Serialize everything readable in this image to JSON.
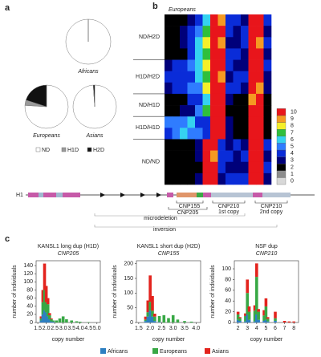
{
  "panel_labels": [
    "a",
    "b",
    "c"
  ],
  "chart_data": [
    {
      "type": "pie",
      "categories": [
        "ND",
        "H1D",
        "H2D"
      ],
      "colors": [
        "#ffffff",
        "#9a9a9a",
        "#111111"
      ],
      "pies": [
        {
          "name": "Africans",
          "values": [
            100,
            0,
            0
          ]
        },
        {
          "name": "Europeans",
          "values": [
            76,
            4,
            20
          ]
        },
        {
          "name": "Asians",
          "values": [
            99,
            0,
            1
          ]
        }
      ]
    },
    {
      "type": "heatmap",
      "title": "Europeans",
      "groups": [
        {
          "label": "ND/H2D",
          "rows": [
            [
              2,
              2,
              2,
              3,
              4,
              6,
              10,
              9,
              4,
              4,
              3,
              10,
              10,
              4
            ],
            [
              2,
              2,
              3,
              4,
              5,
              7,
              10,
              10,
              4,
              3,
              4,
              10,
              10,
              3
            ],
            [
              2,
              2,
              3,
              4,
              6,
              8,
              10,
              9,
              3,
              3,
              4,
              10,
              9,
              4
            ],
            [
              2,
              2,
              2,
              4,
              6,
              7,
              10,
              10,
              4,
              4,
              3,
              10,
              10,
              3
            ]
          ]
        },
        {
          "label": "H1D/H2D",
          "rows": [
            [
              3,
              4,
              4,
              5,
              6,
              8,
              10,
              10,
              4,
              3,
              3,
              10,
              10,
              4
            ],
            [
              4,
              4,
              4,
              4,
              6,
              7,
              10,
              9,
              3,
              4,
              4,
              10,
              10,
              3
            ],
            [
              3,
              4,
              4,
              5,
              5,
              8,
              10,
              10,
              4,
              4,
              3,
              10,
              9,
              3
            ]
          ]
        },
        {
          "label": "ND/H1D",
          "rows": [
            [
              2,
              2,
              2,
              4,
              4,
              6,
              10,
              10,
              3,
              2,
              2,
              9,
              10,
              2
            ],
            [
              2,
              2,
              3,
              3,
              5,
              7,
              10,
              10,
              2,
              2,
              2,
              10,
              10,
              2
            ]
          ]
        },
        {
          "label": "H1D/H1D",
          "rows": [
            [
              5,
              5,
              5,
              6,
              4,
              4,
              10,
              10,
              3,
              2,
              2,
              10,
              10,
              2
            ],
            [
              4,
              5,
              6,
              5,
              5,
              4,
              10,
              10,
              3,
              2,
              2,
              10,
              10,
              2
            ]
          ]
        },
        {
          "label": "ND/ND",
          "rows": [
            [
              2,
              2,
              2,
              2,
              3,
              10,
              10,
              4,
              3,
              4,
              3,
              10,
              10,
              4
            ],
            [
              2,
              2,
              2,
              2,
              3,
              10,
              9,
              4,
              4,
              3,
              4,
              10,
              10,
              3
            ],
            [
              2,
              2,
              2,
              2,
              2,
              10,
              10,
              4,
              3,
              3,
              3,
              10,
              10,
              4
            ],
            [
              2,
              2,
              2,
              2,
              3,
              10,
              10,
              3,
              4,
              4,
              4,
              10,
              10,
              3
            ]
          ]
        }
      ],
      "colorbar": {
        "ticks": [
          0,
          1,
          2,
          3,
          4,
          5,
          6,
          7,
          8,
          9,
          10
        ],
        "colors": [
          "#d8d8d8",
          "#8c8c8c",
          "#000000",
          "#00007a",
          "#0a2cd8",
          "#2f7cff",
          "#35d2f0",
          "#2fbf3c",
          "#f5ef2a",
          "#f59a22",
          "#e8151b"
        ]
      }
    },
    {
      "type": "bar",
      "stacked": true,
      "title": "KANSL1 long dup (H1D)",
      "subtitle": "CNP205",
      "xlabel": "copy number",
      "ylabel": "number of individuals",
      "x": [
        1.7,
        1.8,
        1.9,
        2.0,
        2.1,
        2.2,
        2.3,
        2.4,
        2.6,
        2.8,
        3.0,
        3.2,
        3.5,
        3.8,
        4.0,
        4.5
      ],
      "series": [
        {
          "name": "Africans",
          "color": "#2d7fc1",
          "values": [
            5,
            20,
            30,
            25,
            15,
            8,
            3,
            2,
            0,
            0,
            0,
            0,
            0,
            0,
            0,
            0
          ]
        },
        {
          "name": "Europeans",
          "color": "#38a845",
          "values": [
            5,
            30,
            50,
            25,
            30,
            10,
            5,
            3,
            5,
            10,
            15,
            8,
            5,
            3,
            2,
            1
          ]
        },
        {
          "name": "Asians",
          "color": "#e3231d",
          "values": [
            5,
            30,
            65,
            40,
            15,
            5,
            2,
            0,
            0,
            0,
            0,
            0,
            0,
            0,
            0,
            0
          ]
        }
      ],
      "xlim": [
        1.4,
        5.2
      ],
      "xticks": [
        1.5,
        {
          "value": 2,
          "label": "2.0"
        },
        2.5,
        {
          "value": 3,
          "label": "3.0"
        },
        3.5,
        {
          "value": 4,
          "label": "4.0"
        },
        4.5,
        {
          "value": 5,
          "label": "5.0"
        }
      ],
      "ylim": [
        0,
        152
      ],
      "yticks": [
        0,
        20,
        40,
        60,
        80,
        100,
        120,
        140
      ]
    },
    {
      "type": "bar",
      "stacked": true,
      "title": "KANSL1 short dup (H2D)",
      "subtitle": "CNP155",
      "xlabel": "copy number",
      "ylabel": "number of individuals",
      "x": [
        1.8,
        1.9,
        2.0,
        2.1,
        2.2,
        2.4,
        2.6,
        2.8,
        3.0,
        3.2,
        3.5,
        3.8
      ],
      "series": [
        {
          "name": "Africans",
          "color": "#2d7fc1",
          "values": [
            5,
            20,
            40,
            20,
            5,
            2,
            0,
            0,
            0,
            0,
            0,
            0
          ]
        },
        {
          "name": "Europeans",
          "color": "#38a845",
          "values": [
            5,
            15,
            30,
            20,
            15,
            20,
            25,
            15,
            25,
            10,
            5,
            3
          ]
        },
        {
          "name": "Asians",
          "color": "#e3231d",
          "values": [
            10,
            40,
            90,
            50,
            10,
            0,
            0,
            0,
            0,
            0,
            0,
            0
          ]
        }
      ],
      "xlim": [
        1.4,
        4.2
      ],
      "xticks": [
        1.5,
        {
          "value": 2,
          "label": "2.0"
        },
        2.5,
        {
          "value": 3,
          "label": "3.0"
        },
        3.5,
        {
          "value": 4,
          "label": "4.0"
        }
      ],
      "ylim": [
        0,
        210
      ],
      "yticks": [
        0,
        50,
        100,
        150,
        200
      ]
    },
    {
      "type": "bar",
      "stacked": true,
      "title": "NSF dup",
      "subtitle": "CNP210",
      "xlabel": "copy number",
      "ylabel": "number of individuals",
      "x": [
        2.0,
        2.2,
        2.8,
        3.0,
        3.2,
        3.8,
        4.0,
        4.2,
        4.8,
        5.0,
        5.2,
        6.0,
        7.0,
        7.5,
        8.0
      ],
      "series": [
        {
          "name": "Africans",
          "color": "#2d7fc1",
          "values": [
            5,
            3,
            2,
            15,
            5,
            2,
            15,
            5,
            3,
            5,
            2,
            3,
            0,
            0,
            0
          ]
        },
        {
          "name": "Europeans",
          "color": "#38a845",
          "values": [
            10,
            5,
            10,
            40,
            15,
            20,
            70,
            15,
            10,
            25,
            5,
            5,
            0,
            0,
            0
          ]
        },
        {
          "name": "Asians",
          "color": "#e3231d",
          "values": [
            5,
            2,
            5,
            25,
            10,
            10,
            25,
            5,
            10,
            15,
            3,
            12,
            3,
            2,
            2
          ]
        }
      ],
      "xlim": [
        1.6,
        8.5
      ],
      "xticks": [
        2,
        3,
        4,
        5,
        6,
        7,
        8
      ],
      "ylim": [
        0,
        115
      ],
      "yticks": [
        0,
        20,
        40,
        60,
        80,
        100
      ]
    }
  ],
  "diagram": {
    "haplotype": "H1",
    "labels": [
      "CNP155",
      "CNP205",
      "CNP210",
      "1st copy",
      "CNP210",
      "2nd copy",
      "microdeletion",
      "inversion"
    ]
  }
}
